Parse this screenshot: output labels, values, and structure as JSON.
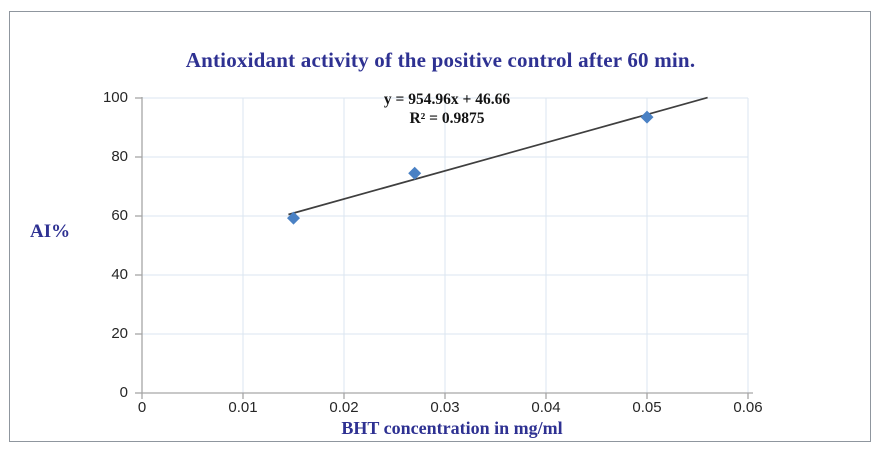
{
  "title": {
    "text": "Antioxidant activity of the positive control after 60 min.",
    "color": "#2e3192"
  },
  "chart_data": {
    "type": "scatter",
    "series": [
      {
        "points": [
          [
            0.015,
            59.3
          ],
          [
            0.027,
            74.5
          ],
          [
            0.05,
            93.5
          ]
        ],
        "marker": "diamond",
        "marker_color": "#4a81c4"
      }
    ],
    "trendline": {
      "slope": 954.96,
      "intercept": 46.66,
      "x_start": 0.0145,
      "x_end": 0.056,
      "color": "#3f3f3f",
      "equation": "y = 954.96x + 46.66",
      "r_squared_label": "R² = 0.9875"
    },
    "xlabel": "BHT concentration in mg/ml",
    "ylabel": "AI%",
    "axis_title_color": "#2e3192",
    "xlim": [
      0,
      0.06
    ],
    "ylim": [
      0,
      100
    ],
    "x_ticks": [
      0,
      0.01,
      0.02,
      0.03,
      0.04,
      0.05,
      0.06
    ],
    "x_tick_labels": [
      "0",
      "0.01",
      "0.02",
      "0.03",
      "0.04",
      "0.05",
      "0.06"
    ],
    "y_ticks": [
      0,
      20,
      40,
      60,
      80,
      100
    ],
    "y_tick_labels": [
      "0",
      "20",
      "40",
      "60",
      "80",
      "100"
    ],
    "grid": true,
    "gridline_color": "#dbe5f1",
    "axis_color": "#a6a6a6",
    "tick_label_color": "#262626",
    "legend": "none"
  }
}
